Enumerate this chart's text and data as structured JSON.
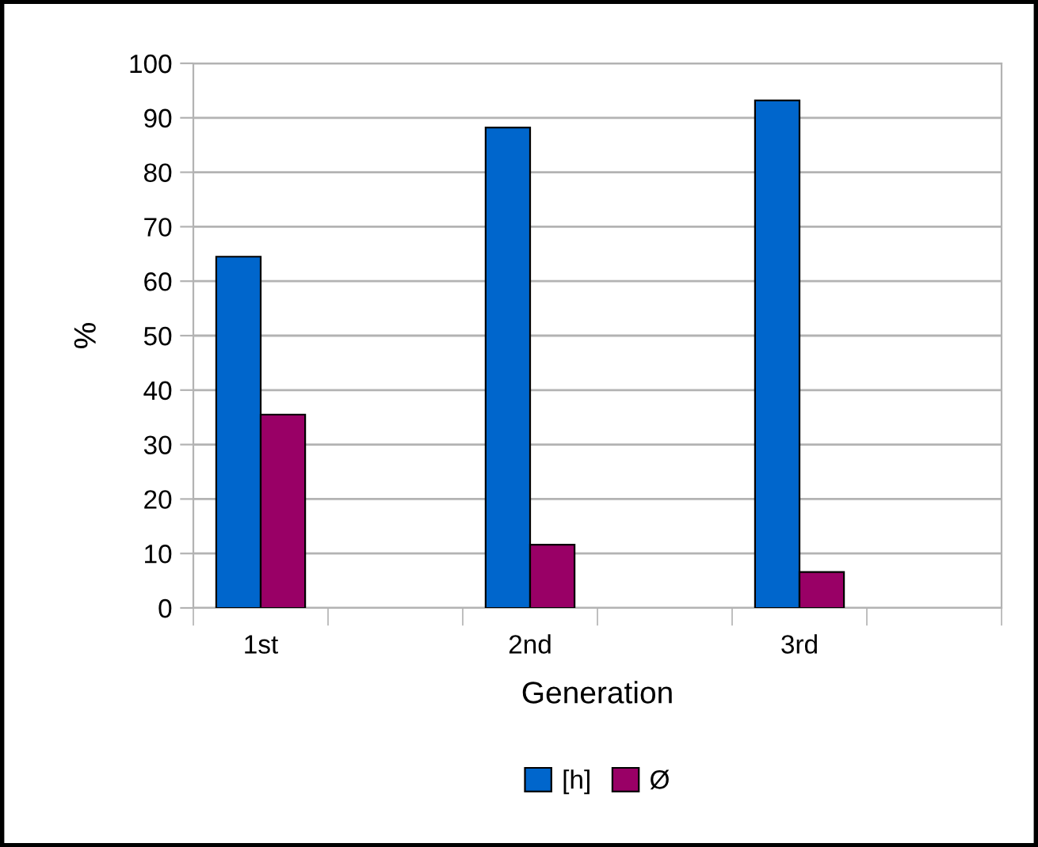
{
  "chart_data": {
    "type": "bar",
    "xlabel": "Generation",
    "ylabel": "%",
    "categories": [
      "1st",
      null,
      "2nd",
      null,
      "3rd",
      null
    ],
    "series": [
      {
        "name": "[h]",
        "color": "#0066cc",
        "values": [
          64.5,
          null,
          88.2,
          null,
          93.2,
          null
        ]
      },
      {
        "name": "Ø",
        "color": "#990066",
        "values": [
          35.5,
          null,
          11.6,
          null,
          6.6,
          null
        ]
      }
    ],
    "ylim": [
      0,
      100
    ],
    "yticks": [
      0,
      10,
      20,
      30,
      40,
      50,
      60,
      70,
      80,
      90,
      100
    ],
    "grid": "y",
    "legend": "bottom"
  }
}
